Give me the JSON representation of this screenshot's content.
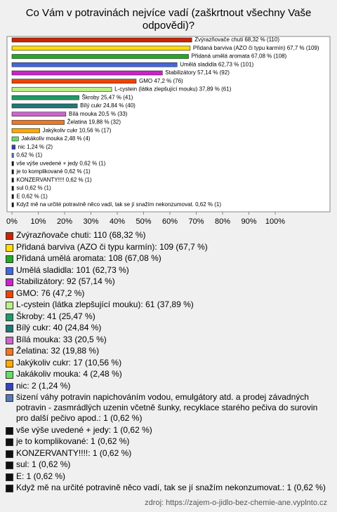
{
  "chart_data": {
    "type": "bar",
    "orientation": "horizontal",
    "title": "Co Vám v potravinách nejvíce vadí (zaškrtnout všechny Vaše odpovědi)?",
    "values": [
      68.32,
      67.7,
      67.08,
      62.73,
      57.14,
      47.2,
      37.89,
      25.47,
      24.84,
      20.5,
      19.88,
      10.56,
      2.48,
      1.24,
      0.62,
      0.62,
      0.62,
      0.62,
      0.62,
      0.62,
      0.62
    ],
    "value_labels": [
      "Zvýrazňovače chuti 68,32 % (110)",
      "Přidaná barviva (AZO či typu karmín) 67,7 % (109)",
      "Přidaná umělá aromata 67,08 % (108)",
      "Umělá sladidla 62,73 % (101)",
      "Stabilizátory 57,14 % (92)",
      "GMO 47,2 % (76)",
      "L-cystein (látka zlepšující mouku) 37,89 % (61)",
      "Škroby 25,47 % (41)",
      "Bílý cukr 24,84 % (40)",
      "Bílá mouka 20,5 % (33)",
      "Želatina 19,88 % (32)",
      "Jakýkoliv cukr 10,56 % (17)",
      "Jakákoliv mouka 2,48 % (4)",
      "nic 1,24 % (2)",
      "0,62 % (1)",
      "vše výše uvedené + jedy 0,62 % (1)",
      "je to komplikované 0,62 % (1)",
      "KONZERVANTY!!!! 0,62 % (1)",
      "sul 0,62 % (1)",
      "E 0,62 % (1)",
      "Když mě na určité potravině něco vadí, tak se jí snažím nekonzumovat. 0,62 % (1)"
    ],
    "legend": [
      "Zvýrazňovače chuti: 110 (68,32 %)",
      "Přidaná barviva (AZO či typu karmín): 109 (67,7 %)",
      "Přidaná umělá aromata: 108 (67,08 %)",
      "Umělá sladidla: 101 (62,73 %)",
      "Stabilizátory: 92 (57,14 %)",
      "GMO: 76 (47,2 %)",
      "L-cystein (látka zlepšující mouku): 61 (37,89 %)",
      "Škroby: 41 (25,47 %)",
      "Bílý cukr: 40 (24,84 %)",
      "Bílá mouka: 33 (20,5 %)",
      "Želatina: 32 (19,88 %)",
      "Jakýkoliv cukr: 17 (10,56 %)",
      "Jakákoliv mouka: 4 (2,48 %)",
      "nic: 2 (1,24 %)",
      "šizení váhy potravin napichováním vodou, emulgátory atd. a prodej závadných potravin  - zasmrádlých uzenin včetně šunky, recyklace starého pečiva do surovin pro další pečivo apod.: 1 (0,62 %)",
      "vše výše uvedené + jedy: 1 (0,62 %)",
      "je to komplikované: 1 (0,62 %)",
      "KONZERVANTY!!!!: 1 (0,62 %)",
      "sul: 1 (0,62 %)",
      "E: 1 (0,62 %)",
      "Když mě na určité potravině něco vadí, tak se jí snažím nekonzumovat.: 1 (0,62 %)"
    ],
    "colors": [
      "#cc2200",
      "#ffdd00",
      "#22aa22",
      "#4466dd",
      "#cc22cc",
      "#ee4400",
      "#bbee88",
      "#229966",
      "#227777",
      "#cc66cc",
      "#ee7722",
      "#ffaa00",
      "#66dd66",
      "#3344bb",
      "#5577bb",
      "#111111",
      "#111111",
      "#111111",
      "#111111",
      "#111111",
      "#111111"
    ],
    "xlim": [
      0,
      100
    ],
    "xticks": [
      {
        "value": 0,
        "label": "0%"
      },
      {
        "value": 10,
        "label": "10%"
      },
      {
        "value": 20,
        "label": "20%"
      },
      {
        "value": 30,
        "label": "30%"
      },
      {
        "value": 40,
        "label": "40%"
      },
      {
        "value": 50,
        "label": "50%"
      },
      {
        "value": 60,
        "label": "60%"
      },
      {
        "value": 70,
        "label": "70%"
      },
      {
        "value": 80,
        "label": "80%"
      },
      {
        "value": 90,
        "label": "90%"
      },
      {
        "value": 100,
        "label": "100%"
      }
    ],
    "source": "zdroj: https://zajem-o-jidlo-bez-chemie-ane.vyplnto.cz"
  }
}
